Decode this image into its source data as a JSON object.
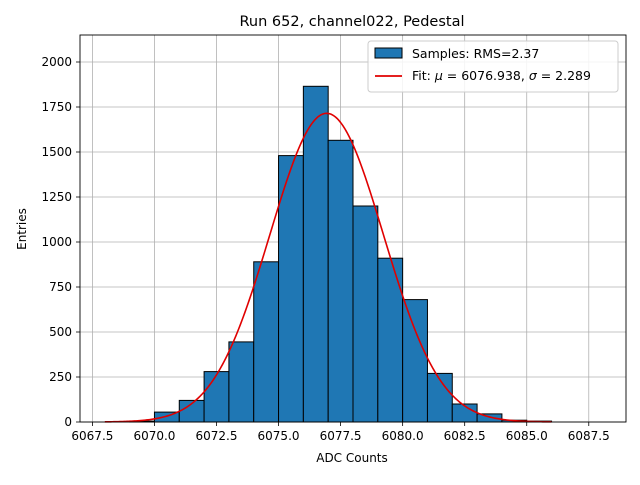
{
  "chart_data": {
    "type": "bar",
    "title": "Run 652, channel022, Pedestal",
    "xlabel": "ADC Counts",
    "ylabel": "Entries",
    "xlim": [
      6067.0,
      6089.0
    ],
    "ylim": [
      0,
      2150
    ],
    "grid": true,
    "legend_position": "top-right",
    "x_ticks": [
      6067.5,
      6070.0,
      6072.5,
      6075.0,
      6077.5,
      6080.0,
      6082.5,
      6085.0,
      6087.5
    ],
    "x_tick_labels": [
      "6067.5",
      "6070.0",
      "6072.5",
      "6075.0",
      "6077.5",
      "6080.0",
      "6082.5",
      "6085.0",
      "6087.5"
    ],
    "y_ticks": [
      0,
      250,
      500,
      750,
      1000,
      1250,
      1500,
      1750,
      2000
    ],
    "y_tick_labels": [
      "0",
      "250",
      "500",
      "750",
      "1000",
      "1250",
      "1500",
      "1750",
      "2000"
    ],
    "histogram": {
      "name": "Samples: RMS=2.37",
      "bin_edges": [
        6068,
        6069,
        6070,
        6071,
        6072,
        6073,
        6074,
        6075,
        6076,
        6077,
        6078,
        6079,
        6080,
        6081,
        6082,
        6083,
        6084,
        6085,
        6086,
        6087,
        6088
      ],
      "counts": [
        0,
        5,
        55,
        120,
        280,
        445,
        890,
        1480,
        1865,
        1565,
        1200,
        910,
        680,
        270,
        100,
        45,
        10,
        5,
        0,
        0
      ],
      "fill_color": "#1f77b4",
      "edge_color": "#000000"
    },
    "fit": {
      "name": "Fit: μ = 6076.938, σ = 2.289",
      "legend_prefix": "Fit: ",
      "mu_symbol": "μ",
      "mu_text": " = 6076.938, ",
      "sigma_symbol": "σ",
      "sigma_text": " = 2.289",
      "mu": 6076.938,
      "sigma": 2.289,
      "amplitude": 1715,
      "x_range": [
        6068,
        6086
      ],
      "color": "#e00000"
    }
  }
}
